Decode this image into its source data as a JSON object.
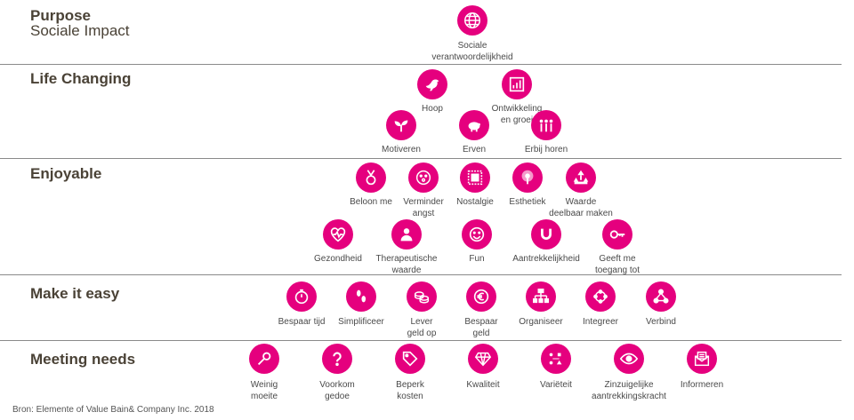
{
  "sections": {
    "purpose": {
      "title": "Purpose",
      "subtitle": "Sociale Impact"
    },
    "life": {
      "title": "Life Changing"
    },
    "enjoy": {
      "title": "Enjoyable"
    },
    "easy": {
      "title": "Make it easy"
    },
    "needs": {
      "title": "Meeting needs"
    }
  },
  "items": {
    "sociale": "Sociale\nverantwoordelijkheid",
    "hoop": "Hoop",
    "ontwikkeling": "Ontwikkeling\nen groei",
    "motiveren": "Motiveren",
    "erven": "Erven",
    "erbij": "Erbij horen",
    "beloon": "Beloon me",
    "vermindering": "Verminder\nangst",
    "nostalgie": "Nostalgie",
    "esthetiek": "Esthetiek",
    "waarde": "Waarde\ndeelbaar maken",
    "gezondheid": "Gezondheid",
    "therapeutisch": "Therapeutische\nwaarde",
    "fun": "Fun",
    "aantrekkelijkheid": "Aantrekkelijkheid",
    "toegang": "Geeft me\ntoegang tot",
    "tijd": "Bespaar tijd",
    "simplificeer": "Simplificeer",
    "lever": "Lever\ngeld op",
    "bespaar_geld": "Bespaar\ngeld",
    "organiseer": "Organiseer",
    "integreer": "Integreer",
    "verbind": "Verbind",
    "moeite": "Weinig\nmoeite",
    "gedoe": "Voorkom\ngedoe",
    "kosten": "Beperk\nkosten",
    "kwaliteit": "Kwaliteit",
    "varieteit": "Variëteit",
    "zinzuigelijk": "Zinzuigelijke\naantrekkingskracht",
    "informeren": "Informeren"
  },
  "source": "Bron: Elemente of Value Bain& Company Inc. 2018",
  "colors": {
    "accent": "#e5007e",
    "divider": "#8a8a8a"
  }
}
